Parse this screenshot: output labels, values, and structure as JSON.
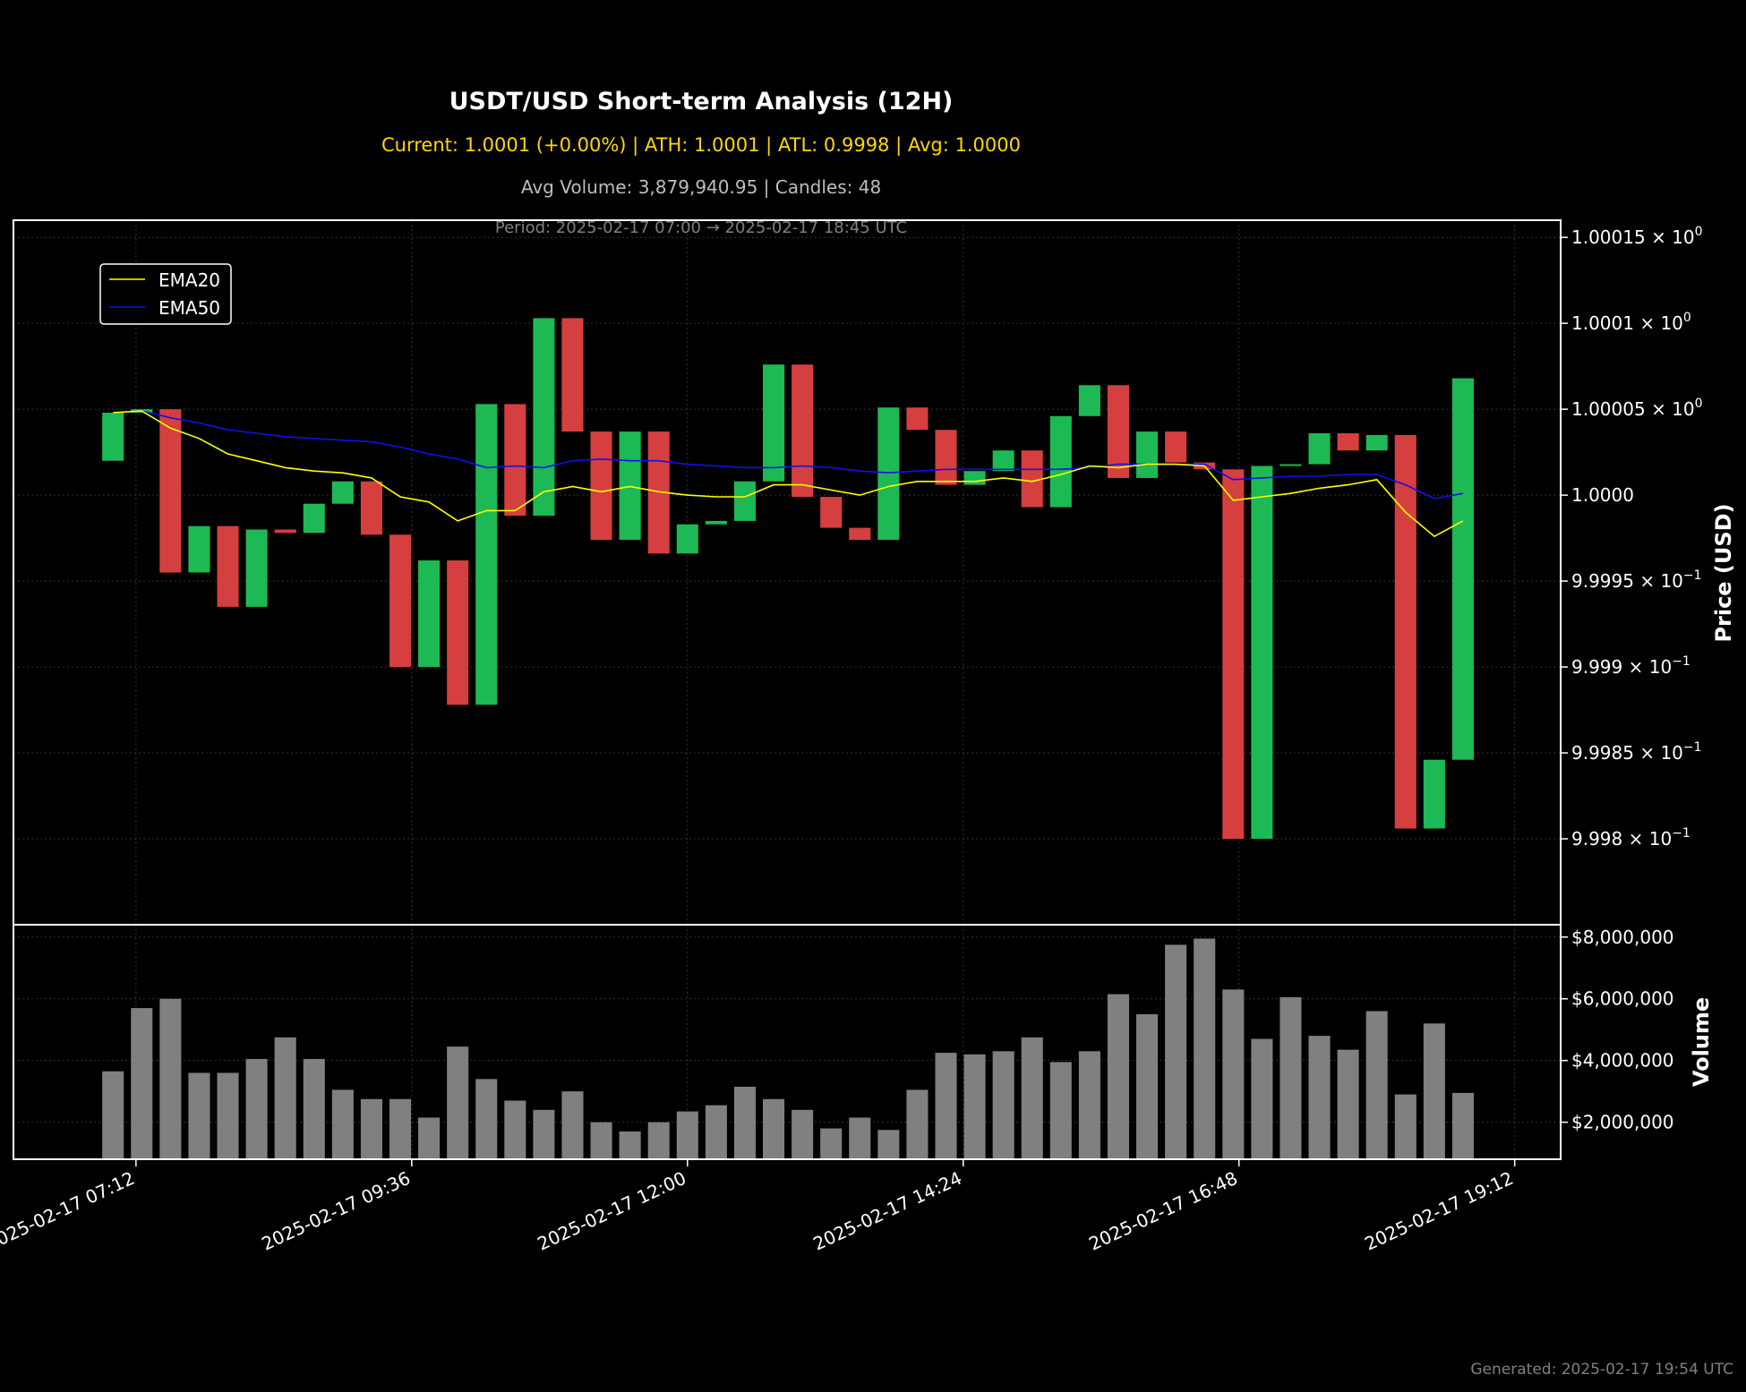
{
  "header": {
    "title": "USDT/USD Short-term Analysis (12H)",
    "stats": "Current: 1.0001 (+0.00%) | ATH: 1.0001 | ATL: 0.9998 | Avg: 1.0000",
    "volume_info": "Avg Volume: 3,879,940.95 | Candles: 48",
    "period": "Period: 2025-02-17 07:00 → 2025-02-17 18:45 UTC"
  },
  "footer": {
    "generated": "Generated: 2025-02-17 19:54 UTC"
  },
  "colors": {
    "up": "#1db954",
    "down": "#d63f3f",
    "ema20": "#ffff00",
    "ema50": "#1010ee",
    "volume": "#808080",
    "background": "#000000"
  },
  "chart_data": {
    "type": "candlestick",
    "x_axis": {
      "ticks": [
        "2025-02-17 07:12",
        "2025-02-17 09:36",
        "2025-02-17 12:00",
        "2025-02-17 14:24",
        "2025-02-17 16:48",
        "2025-02-17 19:12"
      ],
      "tick_minutes": [
        432,
        576,
        720,
        864,
        1008,
        1152
      ],
      "xlim_minutes": [
        368,
        1176
      ],
      "start_minute": 420,
      "interval_minutes": 15
    },
    "price_panel": {
      "ylabel": "Price (USD)",
      "ylim": [
        0.99975,
        1.00016
      ],
      "ticks": [
        {
          "value": 1.00015,
          "label": "1.00015 × 10",
          "exp": "0"
        },
        {
          "value": 1.0001,
          "label": "1.0001 × 10",
          "exp": "0"
        },
        {
          "value": 1.00005,
          "label": "1.00005 × 10",
          "exp": "0"
        },
        {
          "value": 1.0,
          "label": "1.0000",
          "exp": ""
        },
        {
          "value": 0.99995,
          "label": "9.9995 × 10",
          "exp": "−1"
        },
        {
          "value": 0.9999,
          "label": "9.999 × 10",
          "exp": "−1"
        },
        {
          "value": 0.99985,
          "label": "9.9985 × 10",
          "exp": "−1"
        },
        {
          "value": 0.9998,
          "label": "9.998 × 10",
          "exp": "−1"
        }
      ],
      "legend": [
        {
          "name": "EMA20"
        },
        {
          "name": "EMA50"
        }
      ],
      "legend_position": "top-left",
      "candles": [
        [
          1.00002,
          1.000048
        ],
        [
          1.000048,
          1.00005
        ],
        [
          1.00005,
          0.999955
        ],
        [
          0.999955,
          0.999982
        ],
        [
          0.999982,
          0.999935
        ],
        [
          0.999935,
          0.99998
        ],
        [
          0.99998,
          0.999978
        ],
        [
          0.999978,
          0.999995
        ],
        [
          0.999995,
          1.000008
        ],
        [
          1.000008,
          0.999977
        ],
        [
          0.999977,
          0.9999
        ],
        [
          0.9999,
          0.999962
        ],
        [
          0.999962,
          0.999878
        ],
        [
          0.999878,
          1.000053
        ],
        [
          1.000053,
          0.999988
        ],
        [
          0.999988,
          1.000103
        ],
        [
          1.000103,
          1.000037
        ],
        [
          1.000037,
          0.999974
        ],
        [
          0.999974,
          1.000037
        ],
        [
          1.000037,
          0.999966
        ],
        [
          0.999966,
          0.999983
        ],
        [
          0.999983,
          0.999985
        ],
        [
          0.999985,
          1.000008
        ],
        [
          1.000008,
          1.000076
        ],
        [
          1.000076,
          0.999999
        ],
        [
          0.999999,
          0.999981
        ],
        [
          0.999981,
          0.999974
        ],
        [
          0.999974,
          1.000051
        ],
        [
          1.000051,
          1.000038
        ],
        [
          1.000038,
          1.000006
        ],
        [
          1.000006,
          1.000014
        ],
        [
          1.000014,
          1.000026
        ],
        [
          1.000026,
          0.999993
        ],
        [
          0.999993,
          1.000046
        ],
        [
          1.000046,
          1.000064
        ],
        [
          1.000064,
          1.00001
        ],
        [
          1.00001,
          1.000037
        ],
        [
          1.000037,
          1.000019
        ],
        [
          1.000019,
          1.000015
        ],
        [
          1.000015,
          0.9998
        ],
        [
          0.9998,
          1.000017
        ],
        [
          1.000017,
          1.000018
        ],
        [
          1.000018,
          1.000036
        ],
        [
          1.000036,
          1.000026
        ],
        [
          1.000026,
          1.000035
        ],
        [
          1.000035,
          0.999806
        ],
        [
          0.999806,
          0.999846
        ],
        [
          0.999846,
          1.000068
        ]
      ],
      "ema20": [
        1.000048,
        1.000049,
        1.000039,
        1.000033,
        1.000024,
        1.00002,
        1.000016,
        1.000014,
        1.000013,
        1.00001,
        0.999999,
        0.999996,
        0.999985,
        0.999991,
        0.999991,
        1.000002,
        1.000005,
        1.000002,
        1.000005,
        1.000002,
        1.0,
        0.999999,
        0.999999,
        1.000006,
        1.000006,
        1.000003,
        1.0,
        1.000005,
        1.000008,
        1.000008,
        1.000008,
        1.00001,
        1.000008,
        1.000012,
        1.000017,
        1.000016,
        1.000018,
        1.000018,
        1.000017,
        0.999997,
        0.999999,
        1.000001,
        1.000004,
        1.000006,
        1.000009,
        0.99999,
        0.999976,
        0.999985
      ],
      "ema50": [
        1.000048,
        1.000049,
        1.000045,
        1.000042,
        1.000038,
        1.000036,
        1.000034,
        1.000033,
        1.000032,
        1.000031,
        1.000028,
        1.000024,
        1.000021,
        1.000016,
        1.000017,
        1.000016,
        1.00002,
        1.000021,
        1.00002,
        1.00002,
        1.000018,
        1.000017,
        1.000016,
        1.000016,
        1.000017,
        1.000016,
        1.000014,
        1.000013,
        1.000014,
        1.000015,
        1.000015,
        1.000015,
        1.000015,
        1.000015,
        1.000016,
        1.000018,
        1.000018,
        1.000018,
        1.000018,
        1.000009,
        1.00001,
        1.000011,
        1.000011,
        1.000012,
        1.000012,
        1.000006,
        0.999998,
        1.000001
      ]
    },
    "volume_panel": {
      "ylabel": "Volume",
      "ylim": [
        800000,
        8400000
      ],
      "ticks": [
        {
          "value": 2000000,
          "label": "$2,000,000"
        },
        {
          "value": 4000000,
          "label": "$4,000,000"
        },
        {
          "value": 6000000,
          "label": "$6,000,000"
        },
        {
          "value": 8000000,
          "label": "$8,000,000"
        }
      ],
      "values": [
        3650000,
        5700000,
        6000000,
        3600000,
        3600000,
        4050000,
        4750000,
        4050000,
        3050000,
        2750000,
        2750000,
        2150000,
        4450000,
        3400000,
        2700000,
        2400000,
        3000000,
        2000000,
        1700000,
        2000000,
        2350000,
        2550000,
        3150000,
        2750000,
        2400000,
        1800000,
        2150000,
        1750000,
        3050000,
        4250000,
        4200000,
        4300000,
        4750000,
        3950000,
        4300000,
        6150000,
        5500000,
        7750000,
        7950000,
        6300000,
        4700000,
        6050000,
        4800000,
        4350000,
        5600000,
        2900000,
        5200000,
        2950000
      ]
    }
  }
}
